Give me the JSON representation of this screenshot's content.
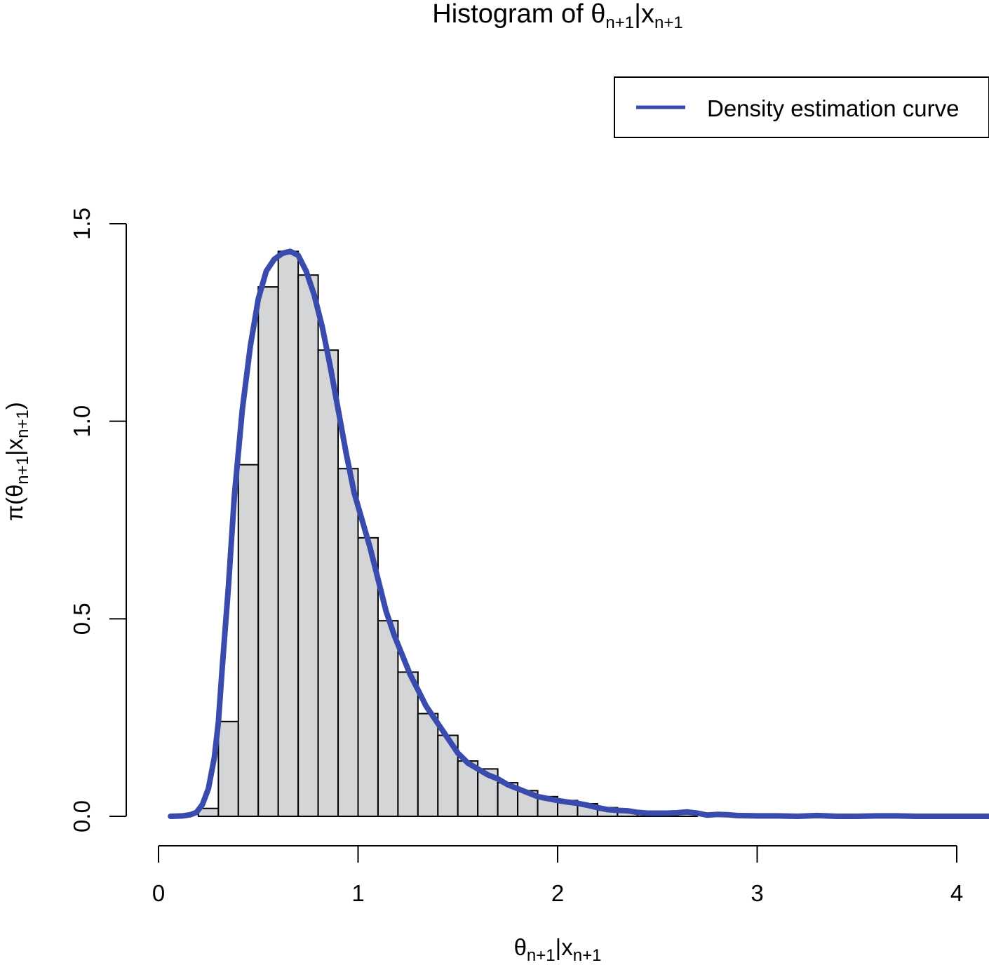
{
  "chart_data": {
    "type": "histogram",
    "title": {
      "main": "Histogram of ",
      "theta": "θ",
      "sub1": "n+1",
      "bar": "|x",
      "sub2": "n+1"
    },
    "xlabel": {
      "theta": "θ",
      "sub1": "n+1",
      "bar": "|x",
      "sub2": "n+1"
    },
    "ylabel": {
      "pi": "π(θ",
      "sub1": "n+1",
      "bar": "|x",
      "sub2": "n+1",
      "close": ")"
    },
    "xlim": [
      0,
      4.2
    ],
    "ylim": [
      0,
      1.5
    ],
    "x_ticks": [
      0,
      1,
      2,
      3,
      4
    ],
    "x_tick_labels": [
      "0",
      "1",
      "2",
      "3",
      "4"
    ],
    "y_ticks": [
      0,
      0.5,
      1.0,
      1.5
    ],
    "y_tick_labels": [
      "0.0",
      "0.5",
      "1.0",
      "1.5"
    ],
    "bin_width": 0.1,
    "bins": [
      {
        "x0": 0.2,
        "x1": 0.3,
        "density": 0.02
      },
      {
        "x0": 0.3,
        "x1": 0.4,
        "density": 0.24
      },
      {
        "x0": 0.4,
        "x1": 0.5,
        "density": 0.89
      },
      {
        "x0": 0.5,
        "x1": 0.6,
        "density": 1.34
      },
      {
        "x0": 0.6,
        "x1": 0.7,
        "density": 1.43
      },
      {
        "x0": 0.7,
        "x1": 0.8,
        "density": 1.37
      },
      {
        "x0": 0.8,
        "x1": 0.9,
        "density": 1.18
      },
      {
        "x0": 0.9,
        "x1": 1.0,
        "density": 0.88
      },
      {
        "x0": 1.0,
        "x1": 1.1,
        "density": 0.705
      },
      {
        "x0": 1.1,
        "x1": 1.2,
        "density": 0.495
      },
      {
        "x0": 1.2,
        "x1": 1.3,
        "density": 0.365
      },
      {
        "x0": 1.3,
        "x1": 1.4,
        "density": 0.26
      },
      {
        "x0": 1.4,
        "x1": 1.5,
        "density": 0.205
      },
      {
        "x0": 1.5,
        "x1": 1.6,
        "density": 0.14
      },
      {
        "x0": 1.6,
        "x1": 1.7,
        "density": 0.12
      },
      {
        "x0": 1.7,
        "x1": 1.8,
        "density": 0.085
      },
      {
        "x0": 1.8,
        "x1": 1.9,
        "density": 0.065
      },
      {
        "x0": 1.9,
        "x1": 2.0,
        "density": 0.05
      },
      {
        "x0": 2.0,
        "x1": 2.1,
        "density": 0.04
      },
      {
        "x0": 2.1,
        "x1": 2.2,
        "density": 0.032
      },
      {
        "x0": 2.2,
        "x1": 2.3,
        "density": 0.022
      },
      {
        "x0": 2.3,
        "x1": 2.4,
        "density": 0.015
      },
      {
        "x0": 2.4,
        "x1": 2.5,
        "density": 0.01
      },
      {
        "x0": 2.5,
        "x1": 2.6,
        "density": 0.01
      },
      {
        "x0": 2.6,
        "x1": 2.7,
        "density": 0.008
      }
    ],
    "density_curve": {
      "name": "Density estimation curve",
      "color": "#3A4BAE",
      "points": [
        [
          0.06,
          0.0
        ],
        [
          0.12,
          0.001
        ],
        [
          0.16,
          0.004
        ],
        [
          0.19,
          0.01
        ],
        [
          0.22,
          0.03
        ],
        [
          0.25,
          0.07
        ],
        [
          0.28,
          0.15
        ],
        [
          0.3,
          0.24
        ],
        [
          0.32,
          0.38
        ],
        [
          0.35,
          0.58
        ],
        [
          0.38,
          0.81
        ],
        [
          0.42,
          1.03
        ],
        [
          0.46,
          1.19
        ],
        [
          0.5,
          1.31
        ],
        [
          0.54,
          1.38
        ],
        [
          0.58,
          1.41
        ],
        [
          0.62,
          1.425
        ],
        [
          0.66,
          1.43
        ],
        [
          0.7,
          1.42
        ],
        [
          0.74,
          1.38
        ],
        [
          0.78,
          1.32
        ],
        [
          0.82,
          1.24
        ],
        [
          0.86,
          1.14
        ],
        [
          0.9,
          1.03
        ],
        [
          0.94,
          0.92
        ],
        [
          0.98,
          0.82
        ],
        [
          1.02,
          0.75
        ],
        [
          1.06,
          0.68
        ],
        [
          1.1,
          0.6
        ],
        [
          1.14,
          0.52
        ],
        [
          1.18,
          0.46
        ],
        [
          1.22,
          0.41
        ],
        [
          1.26,
          0.36
        ],
        [
          1.3,
          0.32
        ],
        [
          1.34,
          0.28
        ],
        [
          1.38,
          0.25
        ],
        [
          1.42,
          0.22
        ],
        [
          1.46,
          0.19
        ],
        [
          1.5,
          0.16
        ],
        [
          1.55,
          0.135
        ],
        [
          1.6,
          0.12
        ],
        [
          1.65,
          0.105
        ],
        [
          1.7,
          0.095
        ],
        [
          1.75,
          0.08
        ],
        [
          1.8,
          0.07
        ],
        [
          1.85,
          0.06
        ],
        [
          1.9,
          0.05
        ],
        [
          1.95,
          0.045
        ],
        [
          2.0,
          0.04
        ],
        [
          2.05,
          0.036
        ],
        [
          2.1,
          0.033
        ],
        [
          2.15,
          0.028
        ],
        [
          2.2,
          0.022
        ],
        [
          2.25,
          0.017
        ],
        [
          2.3,
          0.015
        ],
        [
          2.35,
          0.014
        ],
        [
          2.4,
          0.01
        ],
        [
          2.45,
          0.008
        ],
        [
          2.5,
          0.008
        ],
        [
          2.55,
          0.008
        ],
        [
          2.6,
          0.009
        ],
        [
          2.65,
          0.011
        ],
        [
          2.7,
          0.008
        ],
        [
          2.75,
          0.003
        ],
        [
          2.8,
          0.005
        ],
        [
          2.85,
          0.004
        ],
        [
          2.9,
          0.002
        ],
        [
          3.0,
          0.001
        ],
        [
          3.1,
          0.001
        ],
        [
          3.2,
          0.0
        ],
        [
          3.3,
          0.002
        ],
        [
          3.4,
          0.0
        ],
        [
          3.5,
          0.0
        ],
        [
          3.6,
          0.001
        ],
        [
          3.7,
          0.001
        ],
        [
          3.8,
          0.0
        ],
        [
          3.9,
          0.0
        ],
        [
          4.0,
          0.0
        ],
        [
          4.1,
          0.0
        ],
        [
          4.2,
          0.0
        ]
      ]
    },
    "legend": {
      "position": "top-right",
      "entries": [
        {
          "label": "Density estimation curve",
          "color": "#3A4BAE"
        }
      ]
    },
    "bar_fill": "#D3D5D7",
    "bar_stroke": "#000000",
    "grid": false
  }
}
